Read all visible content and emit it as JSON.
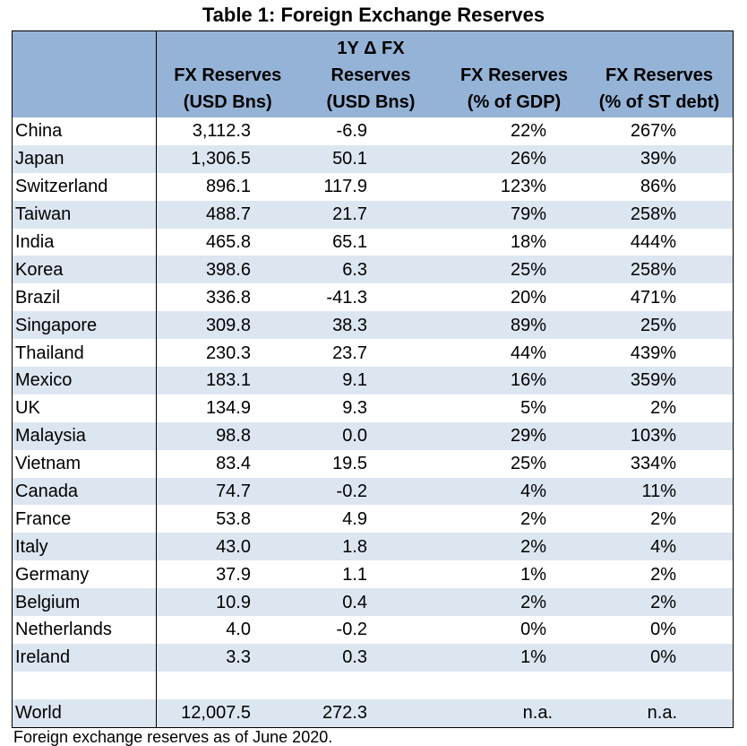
{
  "title": "Table 1: Foreign Exchange Reserves",
  "headers": {
    "col1_line1": "FX Reserves",
    "col1_line2": "(USD Bns)",
    "col2_line0": "1Y Δ FX",
    "col2_line1": "Reserves",
    "col2_line2": "(USD Bns)",
    "col3_line1": "FX Reserves",
    "col3_line2": "(% of GDP)",
    "col4_line1": "FX Reserves",
    "col4_line2": "(% of ST debt)"
  },
  "rows": [
    {
      "country": "China",
      "fx": "3,112.3",
      "chg": "-6.9",
      "gdp": "22%",
      "st": "267%"
    },
    {
      "country": "Japan",
      "fx": "1,306.5",
      "chg": "50.1",
      "gdp": "26%",
      "st": "39%"
    },
    {
      "country": "Switzerland",
      "fx": "896.1",
      "chg": "117.9",
      "gdp": "123%",
      "st": "86%"
    },
    {
      "country": "Taiwan",
      "fx": "488.7",
      "chg": "21.7",
      "gdp": "79%",
      "st": "258%"
    },
    {
      "country": "India",
      "fx": "465.8",
      "chg": "65.1",
      "gdp": "18%",
      "st": "444%"
    },
    {
      "country": "Korea",
      "fx": "398.6",
      "chg": "6.3",
      "gdp": "25%",
      "st": "258%"
    },
    {
      "country": "Brazil",
      "fx": "336.8",
      "chg": "-41.3",
      "gdp": "20%",
      "st": "471%"
    },
    {
      "country": "Singapore",
      "fx": "309.8",
      "chg": "38.3",
      "gdp": "89%",
      "st": "25%"
    },
    {
      "country": "Thailand",
      "fx": "230.3",
      "chg": "23.7",
      "gdp": "44%",
      "st": "439%"
    },
    {
      "country": "Mexico",
      "fx": "183.1",
      "chg": "9.1",
      "gdp": "16%",
      "st": "359%"
    },
    {
      "country": "UK",
      "fx": "134.9",
      "chg": "9.3",
      "gdp": "5%",
      "st": "2%"
    },
    {
      "country": "Malaysia",
      "fx": "98.8",
      "chg": "0.0",
      "gdp": "29%",
      "st": "103%"
    },
    {
      "country": "Vietnam",
      "fx": "83.4",
      "chg": "19.5",
      "gdp": "25%",
      "st": "334%"
    },
    {
      "country": "Canada",
      "fx": "74.7",
      "chg": "-0.2",
      "gdp": "4%",
      "st": "11%"
    },
    {
      "country": "France",
      "fx": "53.8",
      "chg": "4.9",
      "gdp": "2%",
      "st": "2%"
    },
    {
      "country": "Italy",
      "fx": "43.0",
      "chg": "1.8",
      "gdp": "2%",
      "st": "4%"
    },
    {
      "country": "Germany",
      "fx": "37.9",
      "chg": "1.1",
      "gdp": "1%",
      "st": "2%"
    },
    {
      "country": "Belgium",
      "fx": "10.9",
      "chg": "0.4",
      "gdp": "2%",
      "st": "2%"
    },
    {
      "country": "Netherlands",
      "fx": "4.0",
      "chg": "-0.2",
      "gdp": "0%",
      "st": "0%"
    },
    {
      "country": "Ireland",
      "fx": "3.3",
      "chg": "0.3",
      "gdp": "1%",
      "st": "0%"
    }
  ],
  "world": {
    "country": "World",
    "fx": "12,007.5",
    "chg": "272.3",
    "gdp": "n.a.",
    "st": "n.a."
  },
  "footnote": "Foreign exchange reserves as of June 2020."
}
